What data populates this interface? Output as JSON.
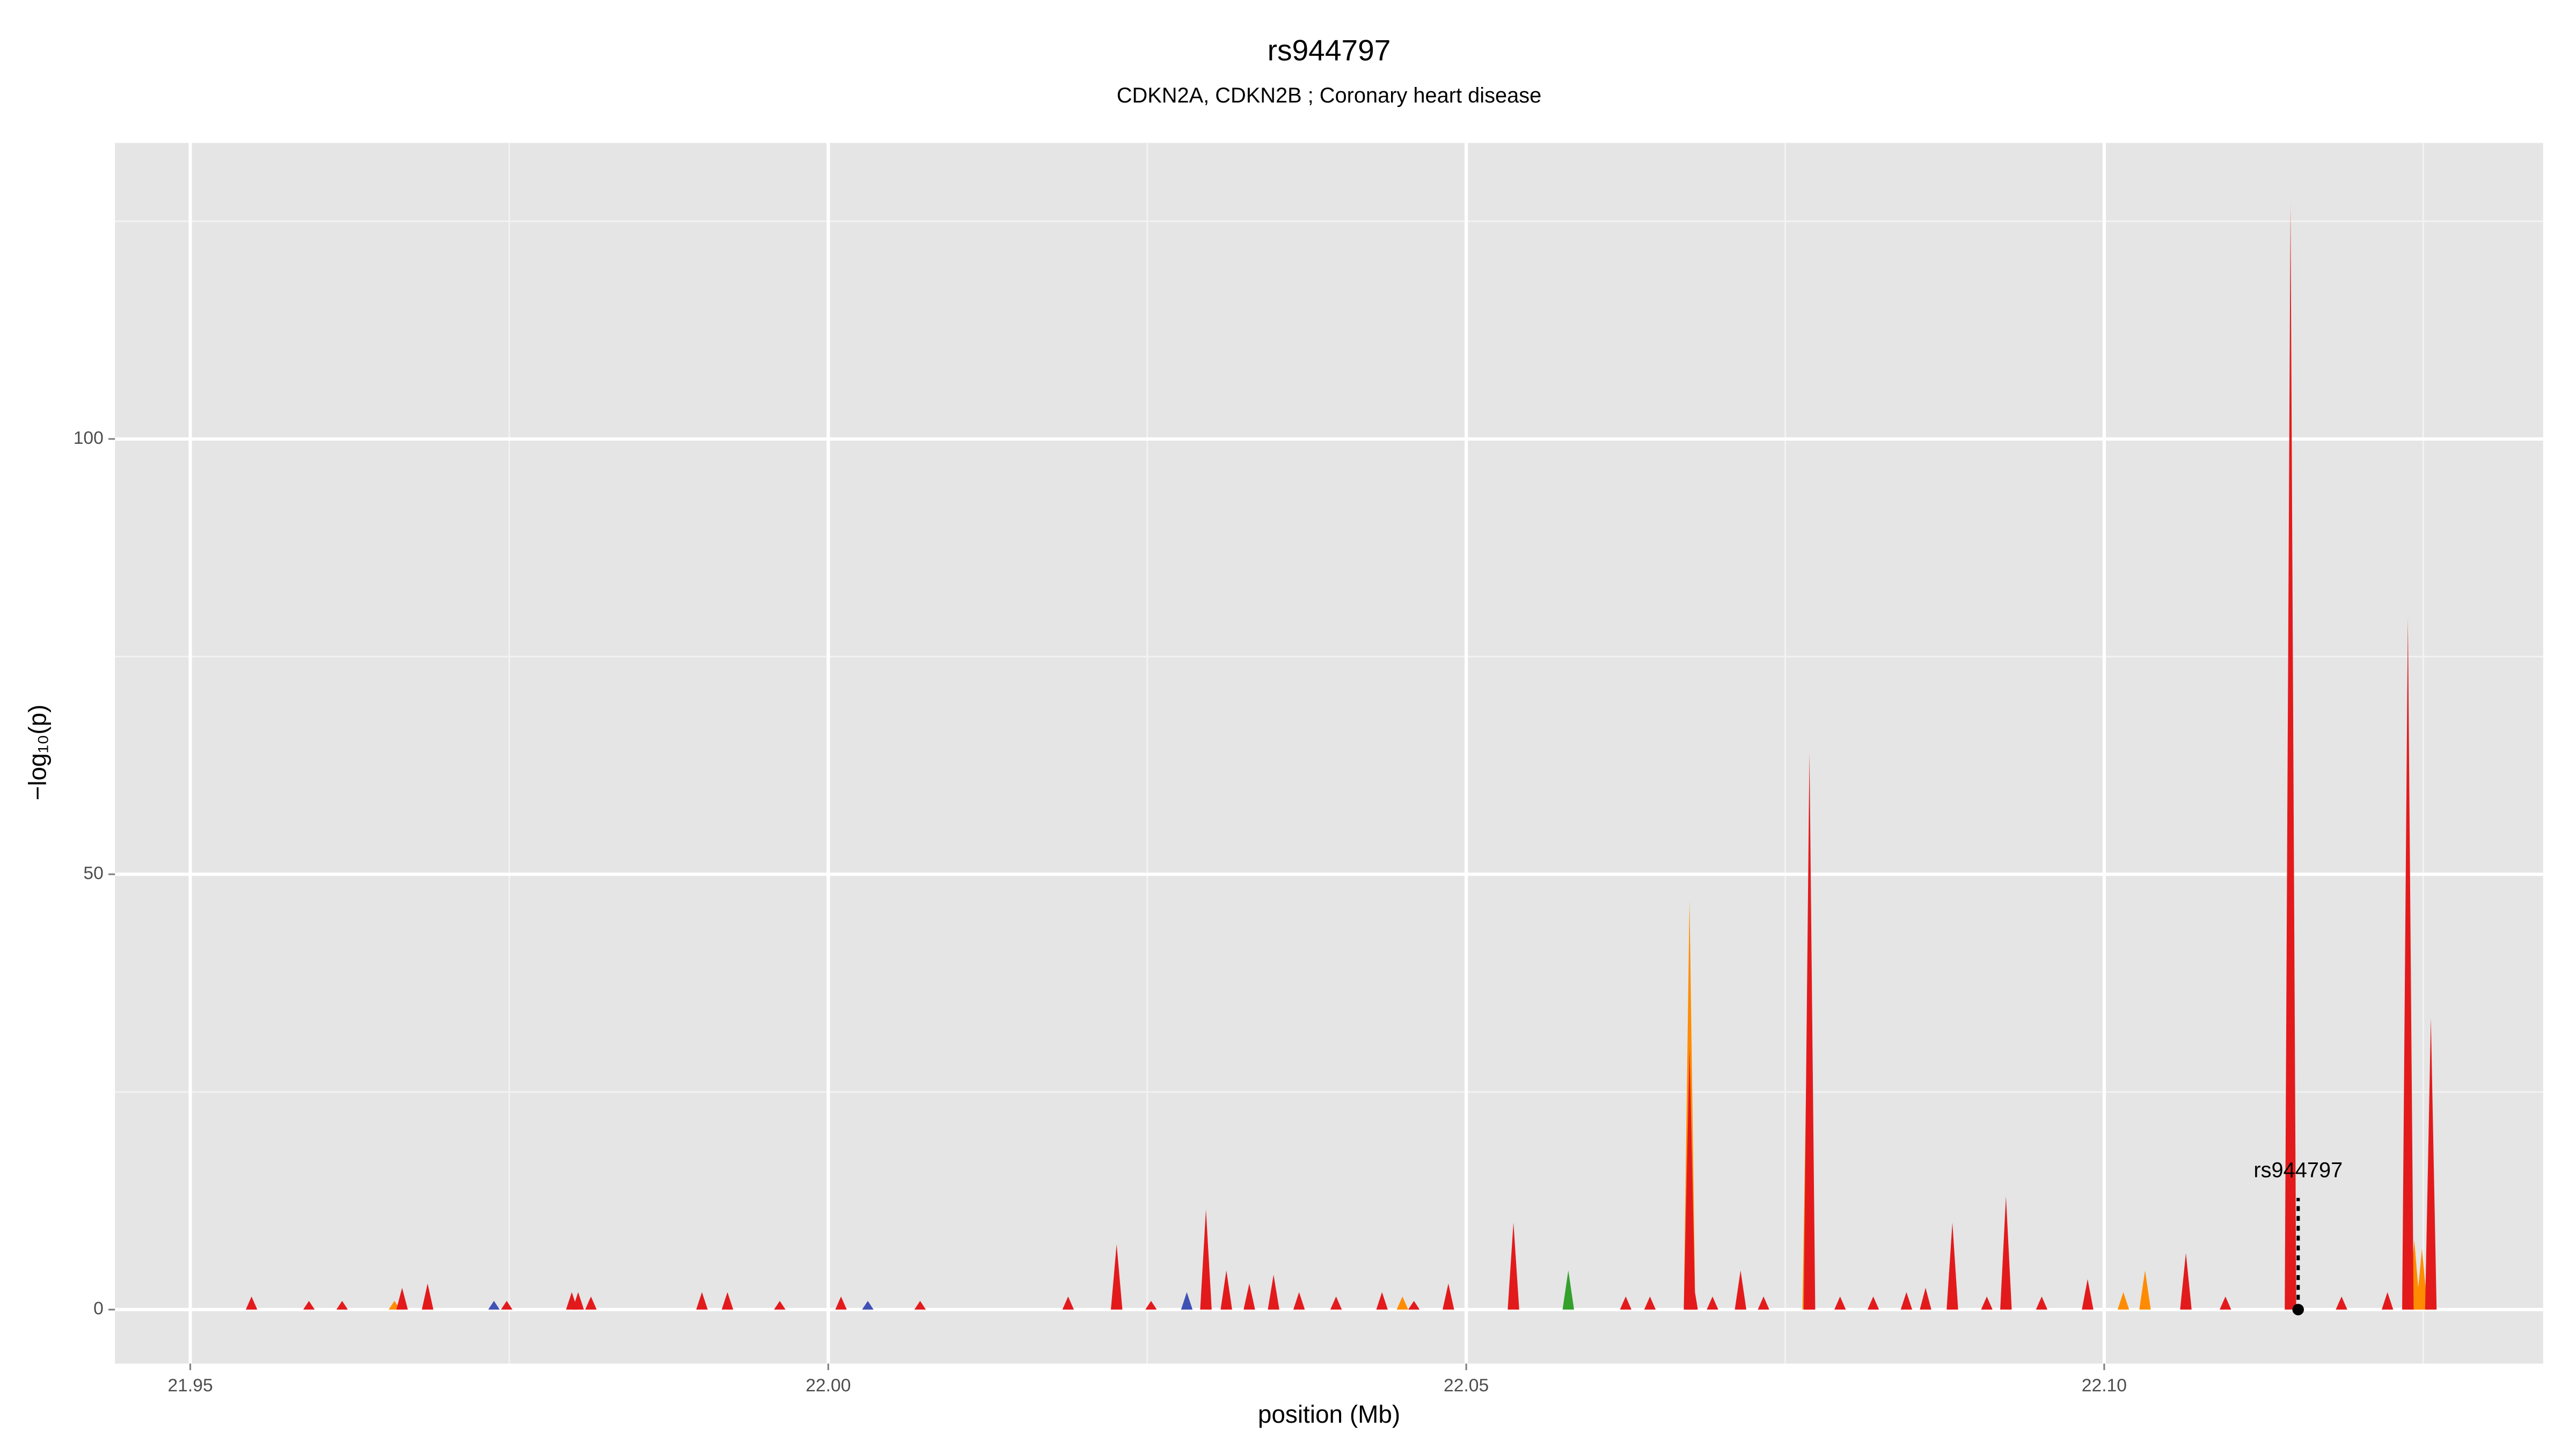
{
  "chart_data": {
    "type": "spike",
    "title": "rs944797",
    "subtitle": "CDKN2A, CDKN2B ; Coronary heart disease",
    "xlabel": "position (Mb)",
    "ylabel": "−log₁₀(p)",
    "xlim": [
      21.9441,
      22.1344
    ],
    "ylim": [
      -6.2,
      134
    ],
    "xticks": [
      21.95,
      {
        "value": 22,
        "label": "22.00"
      },
      22.05,
      {
        "value": 22.1,
        "label": "22.10"
      }
    ],
    "yticks": [
      0,
      50,
      100
    ],
    "xminorticks": [
      21.975,
      22.025,
      22.075,
      22.125
    ],
    "yminorticks": [
      25,
      75,
      125
    ],
    "grid": true,
    "series": [
      {
        "name": "orange",
        "color": "#ff8c00",
        "x": [
          22.0675,
          22.0768,
          22.1015,
          22.1032,
          22.1243,
          22.1249,
          21.966,
          22.045
        ],
        "values": [
          47,
          40,
          2,
          4.5,
          8,
          7,
          1,
          1.5
        ]
      },
      {
        "name": "red",
        "color": "#e31a1c",
        "x": [
          21.9548,
          21.9593,
          21.9619,
          21.9666,
          21.9686,
          21.9748,
          21.9799,
          21.9804,
          21.9814,
          21.9901,
          21.9921,
          21.9962,
          22.001,
          22.0072,
          22.0188,
          22.0226,
          22.0253,
          22.0296,
          22.0312,
          22.033,
          22.0349,
          22.0369,
          22.0398,
          22.0434,
          22.0459,
          22.0486,
          22.0537,
          22.0625,
          22.0644,
          22.0675,
          22.0677,
          22.0693,
          22.0715,
          22.0733,
          22.0769,
          22.0793,
          22.0819,
          22.0845,
          22.086,
          22.0881,
          22.0908,
          22.0923,
          22.0951,
          22.0987,
          22.1064,
          22.1095,
          22.1146,
          22.1186,
          22.1222,
          22.1238,
          22.1256
        ],
        "values": [
          1.5,
          1,
          1,
          2.5,
          3,
          1,
          2,
          2,
          1.5,
          2,
          2,
          1,
          1.5,
          1,
          1.5,
          7.5,
          1,
          11.5,
          4.5,
          3,
          4,
          2,
          1.5,
          2,
          1,
          3,
          10,
          1.5,
          1.5,
          30,
          4,
          1.5,
          4.5,
          1.5,
          64,
          1.5,
          1.5,
          2,
          2.5,
          10,
          1.5,
          13,
          1.5,
          3.5,
          6.5,
          1.5,
          127,
          1.5,
          2,
          79.5,
          33.5
        ]
      },
      {
        "name": "green",
        "color": "#33a02c",
        "x": [
          22.058
        ],
        "values": [
          4.5
        ]
      },
      {
        "name": "blue",
        "color": "#3f51b5",
        "x": [
          21.9738,
          22.0031,
          22.0281
        ],
        "values": [
          1,
          1,
          2
        ]
      }
    ],
    "annotation": {
      "text": "rs944797",
      "x": 22.1152,
      "y": 0
    }
  }
}
